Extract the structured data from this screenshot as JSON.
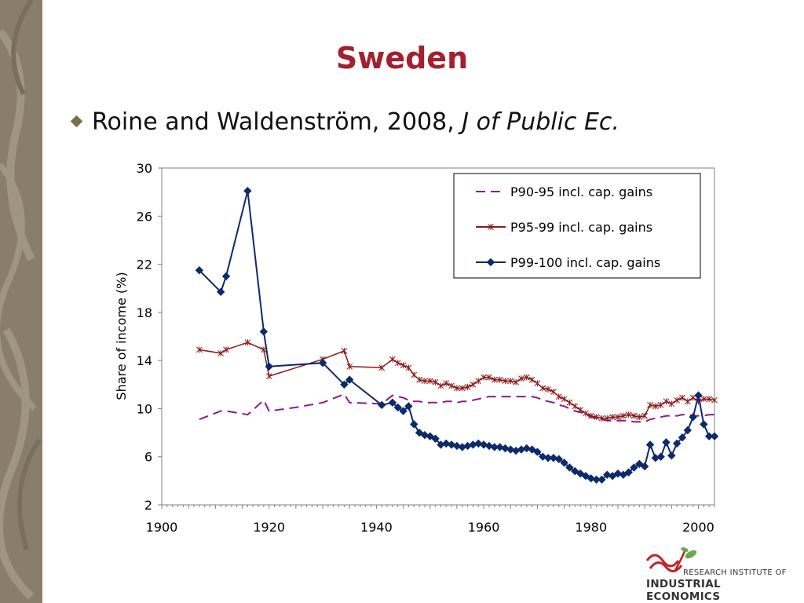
{
  "slide": {
    "title": "Sweden",
    "bullet_text": "Roine and Waldenström, 2008, ",
    "bullet_italic": "J of Public Ec."
  },
  "logo": {
    "line1": "RESEARCH INSTITUTE OF",
    "line2": "INDUSTRIAL ECONOMICS"
  },
  "colors": {
    "title": "#a3202e",
    "strip": "#8a7d6b",
    "p90_95": "#8b1a8b",
    "p95_99": "#8b1a1a",
    "p99_100": "#0d2a6b",
    "logo_red": "#c0232c",
    "logo_green": "#6aa84f"
  },
  "chart_data": {
    "type": "line",
    "ylabel": "Share of income (%)",
    "xlabel": "",
    "xlim": [
      1900,
      2003
    ],
    "ylim": [
      2,
      30
    ],
    "x_ticks": [
      1900,
      1920,
      1940,
      1960,
      1980,
      2000
    ],
    "y_ticks": [
      2,
      6,
      10,
      14,
      18,
      22,
      26,
      30
    ],
    "grid": false,
    "legend_position": "top-right",
    "series": [
      {
        "name": "P90-95 incl. cap. gains",
        "style": "dashed",
        "marker": "none",
        "x": [
          1907,
          1911,
          1912,
          1916,
          1919,
          1920,
          1925,
          1930,
          1934,
          1935,
          1941,
          1943,
          1944,
          1945,
          1946,
          1947,
          1948,
          1949,
          1950,
          1951,
          1952,
          1953,
          1954,
          1955,
          1956,
          1957,
          1958,
          1959,
          1960,
          1961,
          1962,
          1963,
          1964,
          1965,
          1966,
          1967,
          1968,
          1969,
          1970,
          1971,
          1972,
          1973,
          1974,
          1975,
          1976,
          1977,
          1978,
          1979,
          1980,
          1981,
          1982,
          1983,
          1984,
          1985,
          1986,
          1987,
          1988,
          1989,
          1990,
          1991,
          1992,
          1993,
          1994,
          1995,
          1996,
          1997,
          1998,
          1999,
          2000,
          2001,
          2002,
          2003
        ],
        "values": [
          9.1,
          9.8,
          9.8,
          9.5,
          10.7,
          9.8,
          10.1,
          10.5,
          11.2,
          10.5,
          10.4,
          11.1,
          11.0,
          10.9,
          10.7,
          10.6,
          10.6,
          10.5,
          10.5,
          10.5,
          10.5,
          10.6,
          10.6,
          10.5,
          10.6,
          10.6,
          10.7,
          10.8,
          10.9,
          11.0,
          11.0,
          11.0,
          11.0,
          11.0,
          11.0,
          11.0,
          11.0,
          11.0,
          10.9,
          10.7,
          10.6,
          10.5,
          10.3,
          10.2,
          10.0,
          9.8,
          9.7,
          9.5,
          9.3,
          9.2,
          9.1,
          9.0,
          9.0,
          9.0,
          9.0,
          9.0,
          8.9,
          8.9,
          8.9,
          9.1,
          9.2,
          9.3,
          9.4,
          9.4,
          9.4,
          9.5,
          9.5,
          9.4,
          9.4,
          9.4,
          9.5,
          9.5
        ]
      },
      {
        "name": "P95-99 incl. cap. gains",
        "style": "solid",
        "marker": "star",
        "x": [
          1907,
          1911,
          1912,
          1916,
          1919,
          1920,
          1930,
          1934,
          1935,
          1941,
          1943,
          1944,
          1945,
          1946,
          1947,
          1948,
          1949,
          1950,
          1951,
          1952,
          1953,
          1954,
          1955,
          1956,
          1957,
          1958,
          1959,
          1960,
          1961,
          1962,
          1963,
          1964,
          1965,
          1966,
          1967,
          1968,
          1969,
          1970,
          1971,
          1972,
          1973,
          1974,
          1975,
          1976,
          1977,
          1978,
          1979,
          1980,
          1981,
          1982,
          1983,
          1984,
          1985,
          1986,
          1987,
          1988,
          1989,
          1990,
          1991,
          1992,
          1993,
          1994,
          1995,
          1996,
          1997,
          1998,
          1999,
          2000,
          2001,
          2002,
          2003
        ],
        "values": [
          14.9,
          14.6,
          14.9,
          15.5,
          14.9,
          12.7,
          14.1,
          14.8,
          13.5,
          13.4,
          14.1,
          13.8,
          13.6,
          13.4,
          12.8,
          12.4,
          12.3,
          12.3,
          12.2,
          11.9,
          12.1,
          11.9,
          11.7,
          11.7,
          11.8,
          12.0,
          12.3,
          12.6,
          12.6,
          12.4,
          12.4,
          12.3,
          12.3,
          12.2,
          12.5,
          12.6,
          12.4,
          12.1,
          11.7,
          11.6,
          11.4,
          11.0,
          10.8,
          10.5,
          10.2,
          9.9,
          9.6,
          9.4,
          9.3,
          9.2,
          9.2,
          9.3,
          9.3,
          9.4,
          9.5,
          9.4,
          9.3,
          9.4,
          10.3,
          10.2,
          10.3,
          10.6,
          10.4,
          10.7,
          10.9,
          10.6,
          10.9,
          10.6,
          10.8,
          10.8,
          10.7
        ]
      },
      {
        "name": "P99-100 incl. cap. gains",
        "style": "solid",
        "marker": "diamond",
        "x": [
          1907,
          1911,
          1912,
          1916,
          1919,
          1920,
          1930,
          1934,
          1935,
          1941,
          1943,
          1944,
          1945,
          1946,
          1947,
          1948,
          1949,
          1950,
          1951,
          1952,
          1953,
          1954,
          1955,
          1956,
          1957,
          1958,
          1959,
          1960,
          1961,
          1962,
          1963,
          1964,
          1965,
          1966,
          1967,
          1968,
          1969,
          1970,
          1971,
          1972,
          1973,
          1974,
          1975,
          1976,
          1977,
          1978,
          1979,
          1980,
          1981,
          1982,
          1983,
          1984,
          1985,
          1986,
          1987,
          1988,
          1989,
          1990,
          1991,
          1992,
          1993,
          1994,
          1995,
          1996,
          1997,
          1998,
          1999,
          2000,
          2001,
          2002,
          2003
        ],
        "values": [
          21.5,
          19.7,
          21.0,
          28.1,
          16.4,
          13.5,
          13.8,
          12.0,
          12.4,
          10.3,
          10.5,
          10.1,
          9.8,
          10.2,
          8.7,
          8.0,
          7.8,
          7.7,
          7.5,
          7.0,
          7.1,
          7.0,
          6.9,
          6.8,
          6.9,
          7.0,
          7.1,
          7.0,
          6.9,
          6.8,
          6.8,
          6.7,
          6.6,
          6.5,
          6.6,
          6.7,
          6.6,
          6.4,
          6.0,
          5.9,
          5.9,
          5.8,
          5.5,
          5.1,
          4.8,
          4.6,
          4.4,
          4.2,
          4.1,
          4.1,
          4.5,
          4.4,
          4.6,
          4.5,
          4.7,
          5.1,
          5.4,
          5.2,
          7.0,
          5.9,
          6.0,
          7.2,
          6.1,
          7.1,
          7.6,
          8.2,
          9.3,
          11.1,
          8.7,
          7.7,
          7.7
        ]
      }
    ]
  }
}
